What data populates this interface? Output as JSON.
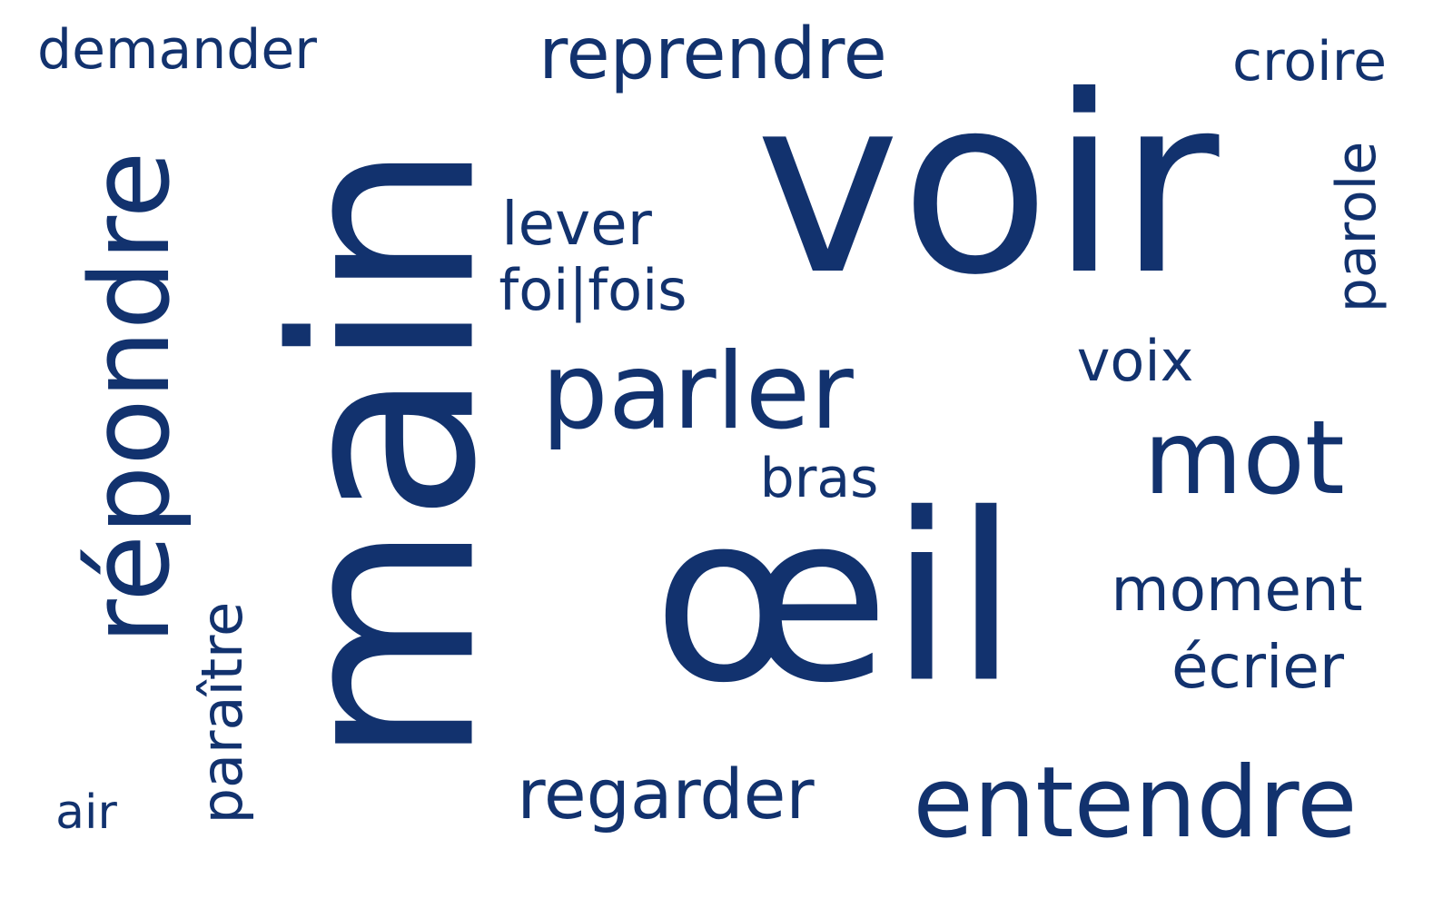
{
  "word_color": "#12326e",
  "background": "#ffffff",
  "words": {
    "voir": "voir",
    "main": "main",
    "oeil": "œil",
    "repondre": "répondre",
    "parler": "parler",
    "entendre": "entendre",
    "mot": "mot",
    "reprendre": "reprendre",
    "regarder": "regarder",
    "demander": "demander",
    "croire": "croire",
    "parole": "parole",
    "paraitre": "paraître",
    "lever": "lever",
    "foifois": "foi|fois",
    "voix": "voix",
    "bras": "bras",
    "moment": "moment",
    "ecrier": "écrier",
    "air": "air"
  }
}
